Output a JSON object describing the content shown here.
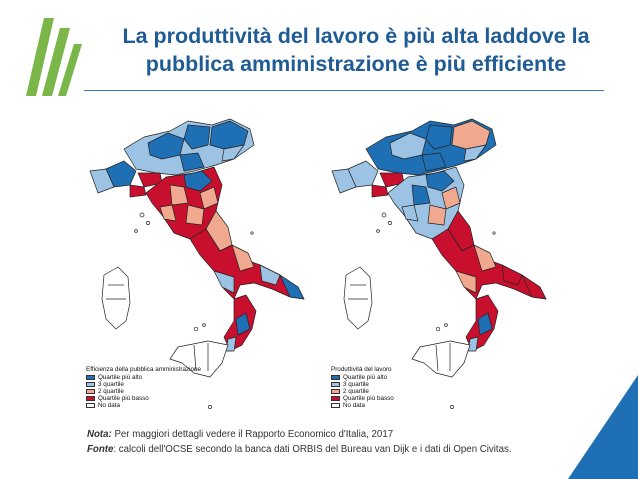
{
  "title": {
    "line1": "La produttività del lavoro è più alta laddove la",
    "line2": "pubblica amministrazione è più efficiente"
  },
  "colors": {
    "title": "#1f5c95",
    "q4_top": "#1f6fb4",
    "q3": "#9dc3e4",
    "q2": "#f0a98e",
    "q1_bottom": "#c8102e",
    "no_data": "#ffffff",
    "logo": "#7ab648"
  },
  "maps": [
    {
      "legend_title": "Efficienza della pubblica amministrazione",
      "legend_items": [
        {
          "label": "Quartile più alto",
          "color": "#1f6fb4"
        },
        {
          "label": "3 quartile",
          "color": "#9dc3e4"
        },
        {
          "label": "2 quartile",
          "color": "#f0a98e"
        },
        {
          "label": "Quartile più basso",
          "color": "#c8102e"
        },
        {
          "label": "No data",
          "color": "#ffffff"
        }
      ]
    },
    {
      "legend_title": "Produttività del lavoro",
      "legend_items": [
        {
          "label": "Quartile più alto",
          "color": "#1f6fb4"
        },
        {
          "label": "3 quartile",
          "color": "#9dc3e4"
        },
        {
          "label": "2 quartile",
          "color": "#f0a98e"
        },
        {
          "label": "Quartile più basso",
          "color": "#c8102e"
        },
        {
          "label": "No data",
          "color": "#ffffff"
        }
      ]
    }
  ],
  "notes": {
    "nota_label": "Nota:",
    "nota_text": " Per maggiori dettagli vedere il Rapporto Economico d'Italia, 2017",
    "fonte_label": "Fonte",
    "fonte_text": ": calcoli dell'OCSE secondo la banca dati ORBIS del Bureau van Dijk e i dati di Open Civitas."
  }
}
